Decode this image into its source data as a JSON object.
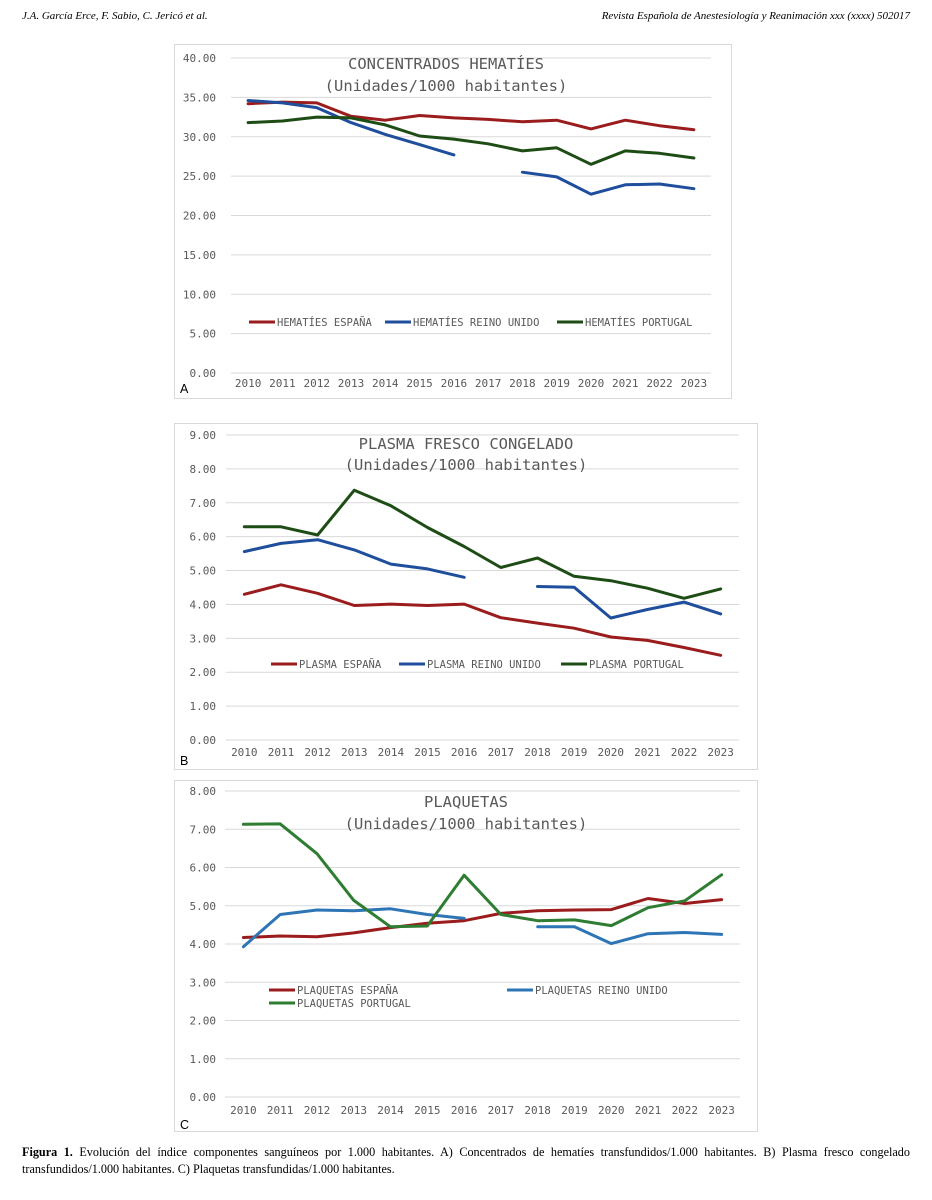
{
  "header": {
    "authors": "J.A. García Erce, F. Sabio, C. Jericó et al.",
    "journal": "Revista Española de Anestesiología y Reanimación xxx (xxxx) 502017"
  },
  "caption": {
    "label": "Figura 1.",
    "text": "Evolución del índice componentes sanguíneos por 1.000 habitantes. A) Concentrados de hematíes transfundidos/1.000 habitantes. B) Plasma fresco congelado transfundidos/1.000 habitantes. C) Plaquetas transfundidas/1.000 habitantes."
  },
  "chart_data": [
    {
      "panel": "A",
      "type": "line",
      "title": "CONCENTRADOS HEMATÍES",
      "subtitle": "(Unidades/1000 habitantes)",
      "xlabel": "",
      "ylabel": "",
      "ylim": [
        0,
        40
      ],
      "yticks": [
        "0.00",
        "5.00",
        "10.00",
        "15.00",
        "20.00",
        "25.00",
        "30.00",
        "35.00",
        "40.00"
      ],
      "categories": [
        "2010",
        "2011",
        "2012",
        "2013",
        "2014",
        "2015",
        "2016",
        "2017",
        "2018",
        "2019",
        "2020",
        "2021",
        "2022",
        "2023"
      ],
      "legend_position": "bottom-inside",
      "series": [
        {
          "name": "HEMATÍES ESPAÑA",
          "color": "#9b1c1c",
          "values": [
            34.2,
            34.4,
            34.3,
            32.6,
            32.1,
            32.7,
            32.4,
            32.2,
            31.9,
            32.1,
            31.0,
            32.1,
            31.4,
            30.9
          ]
        },
        {
          "name": "HEMATÍES REINO UNIDO",
          "color": "#1f4e9c",
          "values": [
            34.6,
            34.3,
            33.7,
            31.8,
            30.3,
            29.0,
            27.7,
            null,
            25.5,
            24.9,
            22.7,
            23.9,
            24.0,
            23.4
          ]
        },
        {
          "name": "HEMATÍES PORTUGAL",
          "color": "#1d4d14",
          "values": [
            31.8,
            32.0,
            32.5,
            32.4,
            31.5,
            30.1,
            29.7,
            29.1,
            28.2,
            28.6,
            26.5,
            28.2,
            27.9,
            27.3
          ]
        }
      ]
    },
    {
      "panel": "B",
      "type": "line",
      "title": "PLASMA FRESCO CONGELADO",
      "subtitle": "(Unidades/1000 habitantes)",
      "xlabel": "",
      "ylabel": "",
      "ylim": [
        0,
        9
      ],
      "yticks": [
        "0.00",
        "1.00",
        "2.00",
        "3.00",
        "4.00",
        "5.00",
        "6.00",
        "7.00",
        "8.00",
        "9.00"
      ],
      "categories": [
        "2010",
        "2011",
        "2012",
        "2013",
        "2014",
        "2015",
        "2016",
        "2017",
        "2018",
        "2019",
        "2020",
        "2021",
        "2022",
        "2023"
      ],
      "legend_position": "bottom-inside",
      "series": [
        {
          "name": "PLASMA ESPAÑA",
          "color": "#9b1c1c",
          "values": [
            4.3,
            4.58,
            4.33,
            3.97,
            4.01,
            3.97,
            4.01,
            3.61,
            3.45,
            3.3,
            3.04,
            2.94,
            2.73,
            2.5
          ]
        },
        {
          "name": "PLASMA REINO UNIDO",
          "color": "#1f4e9c",
          "values": [
            5.56,
            5.8,
            5.91,
            5.61,
            5.19,
            5.05,
            4.8,
            null,
            4.53,
            4.51,
            3.6,
            3.85,
            4.07,
            3.72
          ]
        },
        {
          "name": "PLASMA PORTUGAL",
          "color": "#1d4d14",
          "values": [
            6.29,
            6.29,
            6.05,
            7.37,
            6.91,
            6.27,
            5.71,
            5.09,
            5.37,
            4.83,
            4.7,
            4.48,
            4.18,
            4.46
          ]
        }
      ]
    },
    {
      "panel": "C",
      "type": "line",
      "title": "PLAQUETAS",
      "subtitle": "(Unidades/1000 habitantes)",
      "xlabel": "",
      "ylabel": "",
      "ylim": [
        0,
        8
      ],
      "yticks": [
        "0.00",
        "1.00",
        "2.00",
        "3.00",
        "4.00",
        "5.00",
        "6.00",
        "7.00",
        "8.00"
      ],
      "categories": [
        "2010",
        "2011",
        "2012",
        "2013",
        "2014",
        "2015",
        "2016",
        "2017",
        "2018",
        "2019",
        "2020",
        "2021",
        "2022",
        "2023"
      ],
      "legend_position": "bottom-inside",
      "series": [
        {
          "name": "PLAQUETAS ESPAÑA",
          "color": "#9b1c1c",
          "values": [
            4.17,
            4.21,
            4.19,
            4.29,
            4.43,
            4.54,
            4.61,
            4.8,
            4.87,
            4.89,
            4.9,
            5.19,
            5.06,
            5.16
          ]
        },
        {
          "name": "PLAQUETAS REINO UNIDO",
          "color": "#2e75b6",
          "values": [
            3.93,
            4.77,
            4.89,
            4.87,
            4.92,
            4.77,
            4.67,
            null,
            4.45,
            4.45,
            4.01,
            4.27,
            4.3,
            4.25
          ]
        },
        {
          "name": "PLAQUETAS PORTUGAL",
          "color": "#2e7d32",
          "values": [
            7.13,
            7.14,
            6.36,
            5.14,
            4.45,
            4.47,
            5.8,
            4.77,
            4.61,
            4.63,
            4.48,
            4.95,
            5.13,
            5.81
          ]
        }
      ]
    }
  ]
}
